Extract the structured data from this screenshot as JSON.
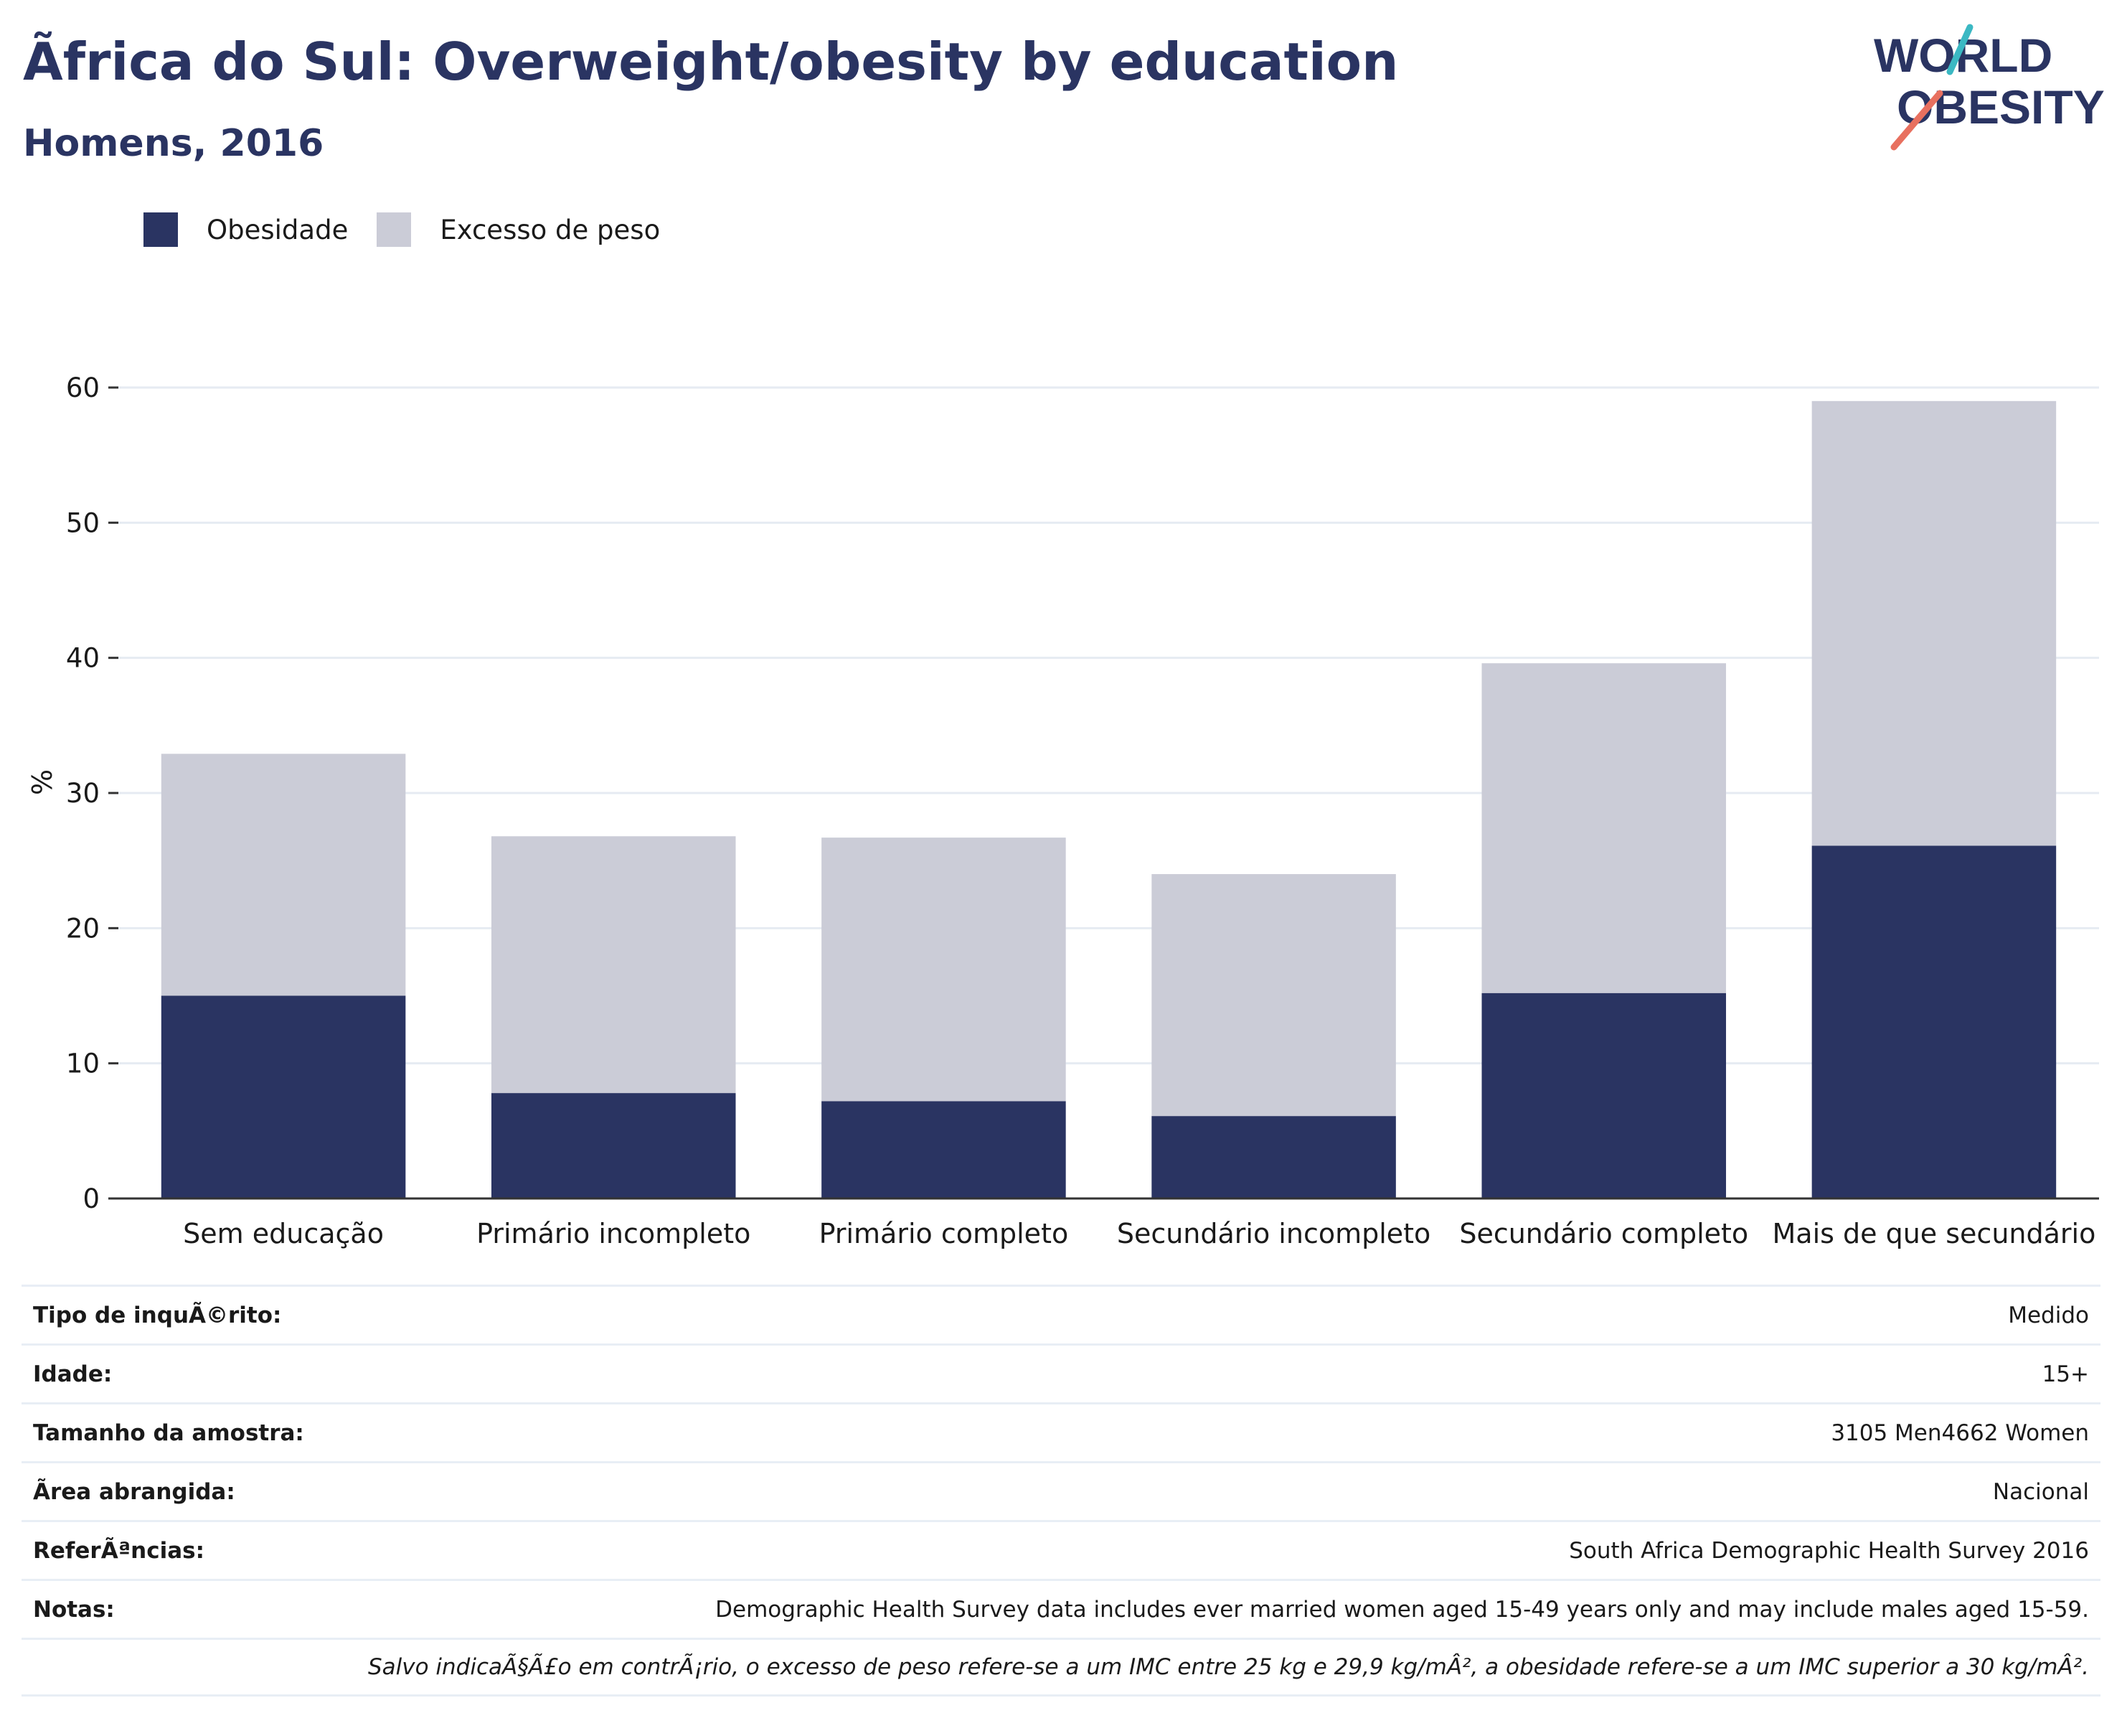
{
  "header": {
    "title": "Ãfrica do Sul: Overweight/obesity by education",
    "subtitle": "Homens, 2016",
    "logo_line1": "WORLD",
    "logo_line2": "OBESITY"
  },
  "legend": [
    {
      "label": "Obesidade",
      "color": "#2a3462"
    },
    {
      "label": "Excesso de peso",
      "color": "#cbccd7"
    }
  ],
  "colors": {
    "obesity": "#2a3462",
    "overweight": "#cbccd7",
    "grid": "#e6ebf2",
    "axis": "#333333",
    "title": "#2a3462",
    "logo_teal": "#3bb8c3",
    "logo_coral": "#e8705f"
  },
  "chart_data": {
    "type": "bar",
    "stacked": true,
    "ylabel": "%",
    "xlabel": "",
    "ylim": [
      0,
      60
    ],
    "yticks": [
      0,
      10,
      20,
      30,
      40,
      50,
      60
    ],
    "grid": true,
    "legend_position": "top-left",
    "categories": [
      "Sem educação",
      "Primário incompleto",
      "Primário completo",
      "Secundário incompleto",
      "Secundário completo",
      "Mais de que secundário"
    ],
    "series": [
      {
        "name": "Obesidade",
        "values": [
          15.0,
          7.8,
          7.2,
          6.1,
          15.2,
          26.1
        ]
      },
      {
        "name": "Excesso de peso",
        "values": [
          17.9,
          19.0,
          19.5,
          17.9,
          24.4,
          32.9
        ]
      }
    ]
  },
  "info": [
    {
      "label": "Tipo de inquÃ©rito:",
      "value": "Medido"
    },
    {
      "label": "Idade:",
      "value": "15+"
    },
    {
      "label": "Tamanho da amostra:",
      "value": "3105 Men4662 Women"
    },
    {
      "label": "Ãrea abrangida:",
      "value": "Nacional"
    },
    {
      "label": "ReferÃªncias:",
      "value": "South Africa Demographic Health Survey 2016"
    },
    {
      "label": "Notas:",
      "value": "Demographic Health Survey data includes ever married women aged 15-49 years only and may include males aged 15-59."
    }
  ],
  "footnote": "Salvo indicaÃ§Ã£o em contrÃ¡rio, o excesso de peso refere-se a um IMC entre 25 kg e 29,9 kg/mÂ², a obesidade refere-se a um IMC superior a 30 kg/mÂ²."
}
